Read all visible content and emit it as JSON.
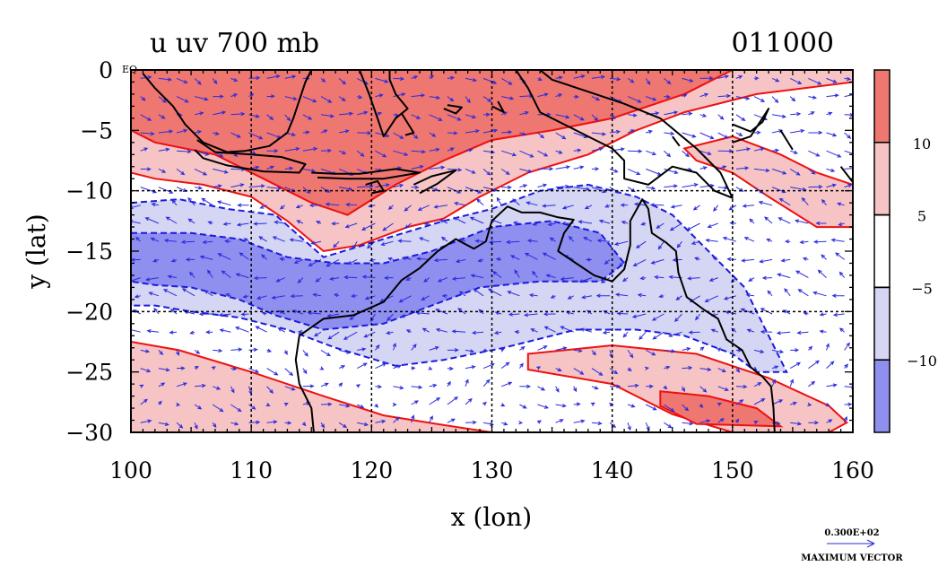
{
  "chart_data": {
    "type": "heatmap",
    "title_left": "u uv 700 mb",
    "title_right": "011000",
    "xlabel": "x (lon)",
    "ylabel": "y (lat)",
    "xlim": [
      100,
      160
    ],
    "ylim": [
      -30,
      0
    ],
    "x_ticks": [
      {
        "value": 100,
        "label": "100"
      },
      {
        "value": 110,
        "label": "110"
      },
      {
        "value": 120,
        "label": "120"
      },
      {
        "value": 130,
        "label": "130"
      },
      {
        "value": 140,
        "label": "140"
      },
      {
        "value": 150,
        "label": "150"
      },
      {
        "value": 160,
        "label": "160"
      }
    ],
    "y_ticks": [
      {
        "value": 0,
        "label": "0"
      },
      {
        "value": -5,
        "label": "−5"
      },
      {
        "value": -10,
        "label": "−10"
      },
      {
        "value": -15,
        "label": "−15"
      },
      {
        "value": -20,
        "label": "−20"
      },
      {
        "value": -25,
        "label": "−25"
      },
      {
        "value": -30,
        "label": "−30"
      }
    ],
    "eq_label": "EQ",
    "grid": true,
    "grid_style": "dashed",
    "grid_x": [
      110,
      120,
      130,
      140,
      150
    ],
    "grid_y": [
      -10,
      -20
    ],
    "colorbar": {
      "placement": "right",
      "bins": [
        {
          "color": "#ef7771"
        },
        {
          "color": "#f6c4c4"
        },
        {
          "color": "#ffffff"
        },
        {
          "color": "#d5d5f4"
        },
        {
          "color": "#8f8ff0"
        }
      ],
      "labels": [
        {
          "value": 10,
          "label": "10"
        },
        {
          "value": 5,
          "label": "5"
        },
        {
          "value": -5,
          "label": "−5"
        },
        {
          "value": -10,
          "label": "−10"
        }
      ]
    },
    "contour_regions": [
      {
        "level": "u>10",
        "color": "#ef7771",
        "lonlat": [
          [
            100,
            0
          ],
          [
            150,
            0
          ],
          [
            146,
            -2
          ],
          [
            140,
            -4
          ],
          [
            135,
            -5
          ],
          [
            130,
            -5.8
          ],
          [
            126,
            -7.5
          ],
          [
            122,
            -9.5
          ],
          [
            118,
            -12
          ],
          [
            115,
            -11
          ],
          [
            111,
            -9
          ],
          [
            107,
            -7
          ],
          [
            102,
            -6
          ],
          [
            100,
            -5
          ]
        ]
      },
      {
        "level": "5<u<10",
        "color": "#f6c4c4",
        "lonlat": [
          [
            100,
            -5
          ],
          [
            102,
            -6
          ],
          [
            107,
            -7
          ],
          [
            111,
            -9
          ],
          [
            115,
            -11
          ],
          [
            118,
            -12
          ],
          [
            122,
            -9.5
          ],
          [
            126,
            -7.5
          ],
          [
            130,
            -5.8
          ],
          [
            135,
            -5
          ],
          [
            140,
            -4
          ],
          [
            146,
            -2
          ],
          [
            150,
            0
          ],
          [
            160,
            0
          ],
          [
            160,
            -1
          ],
          [
            152,
            -2
          ],
          [
            146,
            -3.5
          ],
          [
            142,
            -5
          ],
          [
            138,
            -7
          ],
          [
            133,
            -8.5
          ],
          [
            129,
            -10.5
          ],
          [
            126,
            -12.3
          ],
          [
            123,
            -13
          ],
          [
            119,
            -14.5
          ],
          [
            116,
            -15
          ],
          [
            113,
            -12.5
          ],
          [
            110,
            -10.5
          ],
          [
            106,
            -9.5
          ],
          [
            102,
            -9
          ],
          [
            100,
            -8.5
          ]
        ]
      },
      {
        "level": "5<u<10",
        "color": "#f6c4c4",
        "lonlat": [
          [
            150,
            -5.5
          ],
          [
            154,
            -7
          ],
          [
            157,
            -8.5
          ],
          [
            160,
            -9.5
          ],
          [
            160,
            -13
          ],
          [
            157,
            -13
          ],
          [
            153,
            -10.5
          ],
          [
            150,
            -8.5
          ],
          [
            147,
            -7.5
          ],
          [
            146,
            -6.5
          ]
        ]
      },
      {
        "level": "5<u<10",
        "color": "#f6c4c4",
        "lonlat": [
          [
            100,
            -22.5
          ],
          [
            104,
            -23.2
          ],
          [
            110,
            -25
          ],
          [
            116,
            -27
          ],
          [
            121,
            -28.6
          ],
          [
            126,
            -29.4
          ],
          [
            130,
            -30
          ],
          [
            100,
            -30
          ]
        ]
      },
      {
        "level": "5<u<10",
        "color": "#f6c4c4",
        "lonlat": [
          [
            133,
            -23.5
          ],
          [
            140,
            -22.8
          ],
          [
            147,
            -23.5
          ],
          [
            153,
            -25.5
          ],
          [
            158,
            -27.8
          ],
          [
            159.5,
            -29.2
          ],
          [
            158,
            -30
          ],
          [
            150,
            -30
          ],
          [
            145,
            -28.5
          ],
          [
            140,
            -26
          ],
          [
            133,
            -24.8
          ]
        ]
      },
      {
        "level": "u>10",
        "color": "#ef7771",
        "lonlat": [
          [
            144,
            -26.6
          ],
          [
            148,
            -27
          ],
          [
            152,
            -28
          ],
          [
            154,
            -29.5
          ],
          [
            147,
            -29.3
          ],
          [
            144,
            -27.8
          ]
        ]
      },
      {
        "level": "u<-5",
        "color": "#d5d5f4",
        "lonlat": [
          [
            100,
            -11
          ],
          [
            104,
            -10.7
          ],
          [
            108,
            -11.5
          ],
          [
            112,
            -12
          ],
          [
            116,
            -15.5
          ],
          [
            121,
            -14
          ],
          [
            126,
            -12.5
          ],
          [
            130,
            -11.5
          ],
          [
            134,
            -10
          ],
          [
            138,
            -9.5
          ],
          [
            142,
            -10.5
          ],
          [
            145,
            -12
          ],
          [
            148,
            -15
          ],
          [
            151,
            -18
          ],
          [
            153,
            -22
          ],
          [
            154.5,
            -25
          ],
          [
            152,
            -25
          ],
          [
            150,
            -23.5
          ],
          [
            146,
            -22
          ],
          [
            142,
            -21.5
          ],
          [
            137,
            -21.5
          ],
          [
            131,
            -23
          ],
          [
            126,
            -24
          ],
          [
            122,
            -24.5
          ],
          [
            117,
            -23
          ],
          [
            113,
            -21.5
          ],
          [
            109,
            -20.5
          ],
          [
            105,
            -20
          ],
          [
            102,
            -19.5
          ],
          [
            100,
            -19.5
          ]
        ]
      },
      {
        "level": "u<-10",
        "color": "#8f8ff0",
        "lonlat": [
          [
            100,
            -13.5
          ],
          [
            105,
            -13.5
          ],
          [
            109,
            -14
          ],
          [
            113,
            -15.5
          ],
          [
            117,
            -16
          ],
          [
            121,
            -16
          ],
          [
            125,
            -15
          ],
          [
            130,
            -13
          ],
          [
            135,
            -12.5
          ],
          [
            139,
            -13.5
          ],
          [
            141,
            -16
          ],
          [
            139,
            -17.5
          ],
          [
            134,
            -17.5
          ],
          [
            129,
            -18
          ],
          [
            125,
            -19.5
          ],
          [
            121,
            -21
          ],
          [
            116,
            -21.5
          ],
          [
            112,
            -20.3
          ],
          [
            109,
            -19
          ],
          [
            105,
            -18
          ],
          [
            102,
            -17.8
          ],
          [
            100,
            -17.5
          ]
        ]
      }
    ],
    "coastlines": [
      [
        [
          115,
          0
        ],
        [
          114.5,
          -1
        ],
        [
          114,
          -2.5
        ],
        [
          113.5,
          -4
        ],
        [
          113,
          -5.2
        ],
        [
          111.5,
          -6.3
        ],
        [
          109.5,
          -6.7
        ],
        [
          108,
          -6.8
        ],
        [
          106,
          -6
        ],
        [
          104.5,
          -4.5
        ],
        [
          103.5,
          -3
        ],
        [
          102,
          -1.5
        ],
        [
          101,
          -0.3
        ]
      ],
      [
        [
          105.5,
          -5.8
        ],
        [
          107,
          -6.8
        ],
        [
          110,
          -7
        ],
        [
          112.5,
          -7.2
        ],
        [
          114.5,
          -7.8
        ],
        [
          114,
          -8.5
        ],
        [
          111,
          -8.4
        ],
        [
          108,
          -7.9
        ],
        [
          106,
          -7.3
        ],
        [
          105.3,
          -6.6
        ]
      ],
      [
        [
          115,
          -8.5
        ],
        [
          117,
          -8.6
        ],
        [
          119,
          -8.6
        ],
        [
          122,
          -8.2
        ],
        [
          124,
          -8.5
        ],
        [
          121,
          -9
        ],
        [
          118,
          -9
        ],
        [
          115.5,
          -8.9
        ]
      ],
      [
        [
          119.5,
          -9.5
        ],
        [
          120.5,
          -9.2
        ],
        [
          121,
          -10
        ],
        [
          120,
          -10.2
        ]
      ],
      [
        [
          123.5,
          -9.5
        ],
        [
          125,
          -8.8
        ],
        [
          127,
          -8.3
        ],
        [
          125.5,
          -9.4
        ],
        [
          124,
          -10.2
        ]
      ],
      [
        [
          119,
          0
        ],
        [
          119.8,
          -2
        ],
        [
          120.5,
          -4
        ],
        [
          121,
          -5.5
        ],
        [
          122,
          -4
        ],
        [
          123,
          -3.2
        ],
        [
          122,
          -2
        ],
        [
          121.5,
          -0.8
        ],
        [
          121.5,
          0
        ]
      ],
      [
        [
          122.5,
          -3.6
        ],
        [
          123.5,
          -5.2
        ],
        [
          122.8,
          -5.4
        ]
      ],
      [
        [
          126,
          -3.2
        ],
        [
          127,
          -3.6
        ],
        [
          127.5,
          -3.1
        ],
        [
          126.3,
          -2.9
        ]
      ],
      [
        [
          130,
          -3
        ],
        [
          131,
          -3.5
        ],
        [
          130.5,
          -2.6
        ]
      ],
      [
        [
          132,
          0
        ],
        [
          133,
          -1.5
        ],
        [
          134,
          -3.5
        ],
        [
          136,
          -4.5
        ],
        [
          138,
          -5.5
        ],
        [
          140,
          -6.5
        ],
        [
          141,
          -7.5
        ],
        [
          141,
          -9
        ],
        [
          143,
          -9.5
        ],
        [
          145,
          -8
        ],
        [
          147,
          -8.5
        ],
        [
          148.5,
          -10
        ],
        [
          150,
          -10.6
        ],
        [
          149,
          -8.5
        ],
        [
          147,
          -6.5
        ],
        [
          144,
          -4
        ],
        [
          141,
          -2.8
        ],
        [
          138,
          -1.8
        ],
        [
          135,
          -0.8
        ],
        [
          134,
          0
        ]
      ],
      [
        [
          150,
          -4.5
        ],
        [
          151.5,
          -5.1
        ],
        [
          152.5,
          -4.3
        ],
        [
          153,
          -3.2
        ],
        [
          151.5,
          -5.5
        ],
        [
          150,
          -6
        ]
      ],
      [
        [
          154,
          -5
        ],
        [
          154.5,
          -5.8
        ],
        [
          155,
          -6.6
        ]
      ],
      [
        [
          159,
          -8
        ],
        [
          160,
          -9.3
        ]
      ],
      [
        [
          114,
          -22
        ],
        [
          113.7,
          -24
        ],
        [
          114,
          -26
        ],
        [
          115,
          -28
        ],
        [
          115.2,
          -30
        ]
      ],
      [
        [
          114,
          -22
        ],
        [
          116,
          -20.6
        ],
        [
          118.5,
          -20.3
        ],
        [
          121,
          -19.2
        ],
        [
          122.5,
          -17.4
        ],
        [
          124,
          -16.4
        ],
        [
          125.5,
          -15
        ],
        [
          127,
          -14
        ],
        [
          128.5,
          -14.8
        ],
        [
          129.5,
          -14.2
        ],
        [
          130,
          -12.5
        ],
        [
          131.3,
          -11.3
        ],
        [
          132.5,
          -11.8
        ],
        [
          134,
          -11.8
        ],
        [
          135.5,
          -12.2
        ],
        [
          136.8,
          -12.4
        ],
        [
          136,
          -13.5
        ],
        [
          135.5,
          -15
        ],
        [
          137,
          -16
        ],
        [
          138.5,
          -17
        ],
        [
          140,
          -17.5
        ],
        [
          141,
          -16.5
        ],
        [
          141.5,
          -14.5
        ],
        [
          141.5,
          -12.5
        ],
        [
          142.5,
          -10.7
        ],
        [
          143,
          -11.5
        ],
        [
          143.3,
          -13.5
        ],
        [
          144.5,
          -14.3
        ],
        [
          145.3,
          -15
        ],
        [
          145.5,
          -16.8
        ],
        [
          146.2,
          -18.8
        ],
        [
          147.7,
          -19.9
        ],
        [
          148.8,
          -20.6
        ],
        [
          149.5,
          -22.3
        ],
        [
          150.8,
          -23.2
        ],
        [
          151.5,
          -24.6
        ],
        [
          152.5,
          -25.4
        ],
        [
          153.2,
          -26.2
        ],
        [
          153.4,
          -28
        ],
        [
          153.5,
          -30
        ]
      ],
      [
        [
          145,
          -5.5
        ],
        [
          145.6,
          -6.3
        ]
      ]
    ],
    "vector_max_label": "0.300E+02",
    "vector_max_caption": "MAXIMUM VECTOR"
  },
  "colors": {
    "coast": "#000000",
    "contour": "#ee1111",
    "negative_contour": "#1a1adf",
    "vectors": "#2b2bdd",
    "grid": "#000000"
  }
}
